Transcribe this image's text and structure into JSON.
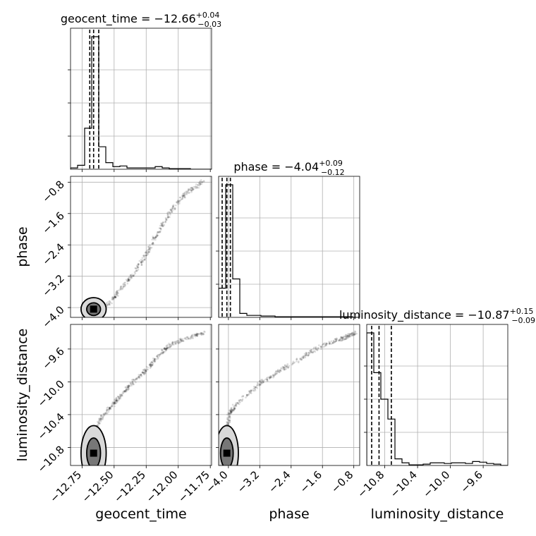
{
  "chart_data": {
    "type": "corner",
    "parameters": [
      {
        "name": "geocent_time",
        "title": "geocent_time = −12.66",
        "median": -12.66,
        "plus": "+0.04",
        "minus": "−0.03",
        "quantiles": [
          -12.69,
          -12.66,
          -12.62
        ],
        "range": [
          -12.84,
          -11.74
        ],
        "ticks": [
          -12.75,
          -12.5,
          -12.25,
          -12.0,
          -11.75
        ],
        "tick_labels": [
          "−12.75",
          "−12.50",
          "−12.25",
          "−12.00",
          "−11.75"
        ],
        "hist_edges": [
          -12.84,
          -12.785,
          -12.73,
          -12.675,
          -12.62,
          -12.565,
          -12.51,
          -12.455,
          -12.4,
          -12.345,
          -12.29,
          -12.235,
          -12.18,
          -12.125,
          -12.07,
          -12.015,
          -11.96,
          -11.905,
          -11.85,
          -11.795,
          -11.74
        ],
        "hist_counts": [
          0.01,
          0.03,
          0.31,
          1.0,
          0.17,
          0.05,
          0.02,
          0.025,
          0.01,
          0.01,
          0.01,
          0.01,
          0.02,
          0.01,
          0.005,
          0.005,
          0.005,
          0.0,
          0.0,
          0.0
        ]
      },
      {
        "name": "phase",
        "title": "phase = −4.04",
        "median": -4.04,
        "plus": "+0.09",
        "minus": "−0.12",
        "quantiles": [
          -4.16,
          -4.04,
          -3.95
        ],
        "ticks": [
          -4.0,
          -3.2,
          -2.4,
          -1.6,
          -0.8
        ],
        "tick_labels": [
          "−4.0",
          "−3.2",
          "−2.4",
          "−1.6",
          "−0.8"
        ],
        "range": [
          -4.25,
          -0.65
        ],
        "hist_edges": [
          -4.25,
          -4.07,
          -3.89,
          -3.71,
          -3.53,
          -3.35,
          -3.17,
          -2.99,
          -2.81,
          -2.63,
          -2.45,
          -2.27,
          -2.09,
          -1.91,
          -1.73,
          -1.55,
          -1.37,
          -1.19,
          -1.01,
          -0.83,
          -0.65
        ],
        "hist_counts": [
          0.22,
          1.0,
          0.29,
          0.03,
          0.015,
          0.015,
          0.01,
          0.01,
          0.005,
          0.005,
          0.005,
          0.005,
          0.005,
          0.005,
          0.005,
          0.005,
          0.005,
          0.005,
          0.005,
          0.0
        ]
      },
      {
        "name": "luminosity_distance",
        "title": "luminosity_distance = −10.87",
        "median": -10.87,
        "plus": "+0.15",
        "minus": "−0.09",
        "quantiles": [
          -10.96,
          -10.87,
          -10.72
        ],
        "ticks": [
          -10.8,
          -10.4,
          -10.0,
          -9.6
        ],
        "tick_labels": [
          "−10.8",
          "−10.4",
          "−10.0",
          "−9.6"
        ],
        "range": [
          -11.02,
          -9.3
        ],
        "hist_edges": [
          -11.02,
          -10.934,
          -10.848,
          -10.762,
          -10.676,
          -10.59,
          -10.504,
          -10.418,
          -10.332,
          -10.246,
          -10.16,
          -10.074,
          -9.988,
          -9.902,
          -9.816,
          -9.73,
          -9.644,
          -9.558,
          -9.472,
          -9.386,
          -9.3
        ],
        "hist_counts": [
          1.0,
          0.7,
          0.5,
          0.35,
          0.05,
          0.02,
          0.005,
          0.005,
          0.01,
          0.02,
          0.02,
          0.015,
          0.02,
          0.02,
          0.015,
          0.03,
          0.025,
          0.015,
          0.01,
          0.0
        ]
      }
    ],
    "sample_tracks": {
      "geocent_time": [
        -12.72,
        -12.68,
        -12.63,
        -12.58,
        -12.52,
        -12.47,
        -12.41,
        -12.35,
        -12.29,
        -12.23,
        -12.18,
        -12.12,
        -12.06,
        -11.99,
        -11.93,
        -11.86,
        -11.8
      ],
      "phase": [
        -4.05,
        -4.04,
        -4.02,
        -3.98,
        -3.85,
        -3.62,
        -3.38,
        -3.14,
        -2.84,
        -2.55,
        -2.2,
        -1.88,
        -1.55,
        -1.28,
        -1.05,
        -0.92,
        -0.75
      ],
      "luminosity_distance": [
        -10.88,
        -10.7,
        -10.52,
        -10.4,
        -10.3,
        -10.2,
        -10.1,
        -10.0,
        -9.92,
        -9.82,
        -9.73,
        -9.63,
        -9.55,
        -9.5,
        -9.47,
        -9.43,
        -9.4
      ]
    }
  }
}
